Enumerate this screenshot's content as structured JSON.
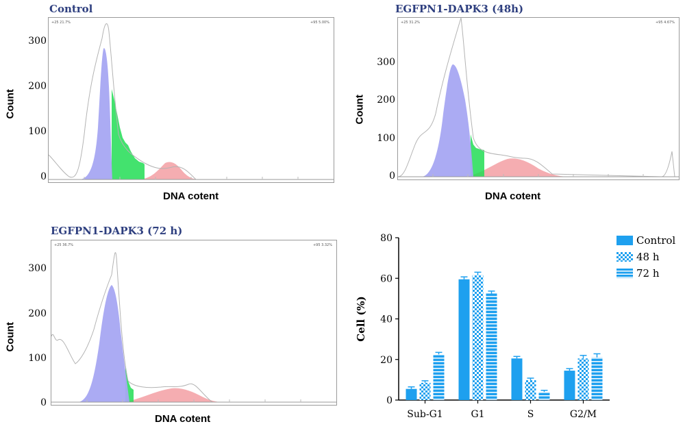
{
  "histograms": [
    {
      "title": "Control",
      "y_ticks": [
        "300",
        "200",
        "100",
        "0"
      ],
      "ylabel": "Count",
      "xlabel": "DNA cotent",
      "corner_left": "+25 21.7%",
      "corner_right": "+95 5.00%"
    },
    {
      "title": "EGFPN1-DAPK3 (48h)",
      "y_ticks": [
        "300",
        "200",
        "100",
        "0"
      ],
      "ylabel": "Count",
      "xlabel": "DNA cotent",
      "corner_left": "+25 31.2%",
      "corner_right": "+95 4.67%"
    },
    {
      "title": "EGFPN1-DAPK3 (72 h)",
      "y_ticks": [
        "300",
        "200",
        "100",
        "0"
      ],
      "ylabel": "Count",
      "xlabel": "DNA cotent",
      "corner_left": "+25 36.7%",
      "corner_right": "+95 3.32%"
    }
  ],
  "chart_data": {
    "type": "bar",
    "categories": [
      "Sub-G1",
      "G1",
      "S",
      "G2/M"
    ],
    "series": [
      {
        "name": "Control",
        "values": [
          5.5,
          59.5,
          20.5,
          14.5
        ],
        "errors": [
          1.0,
          1.2,
          1.0,
          1.0
        ],
        "pattern": "solid"
      },
      {
        "name": "48 h",
        "values": [
          8.5,
          61.5,
          9.8,
          20.5
        ],
        "errors": [
          1.0,
          1.5,
          1.0,
          1.5
        ],
        "pattern": "checker"
      },
      {
        "name": "72 h",
        "values": [
          22.5,
          52.5,
          4.0,
          21.0
        ],
        "errors": [
          1.0,
          1.2,
          0.8,
          1.8
        ],
        "pattern": "stripes"
      }
    ],
    "ylabel": "Cell (%)",
    "xlabel": "",
    "ylim": [
      0,
      80
    ],
    "yticks": [
      0,
      20,
      40,
      60,
      80
    ],
    "color": "#1ea0ef",
    "legend_position": "top-right"
  }
}
